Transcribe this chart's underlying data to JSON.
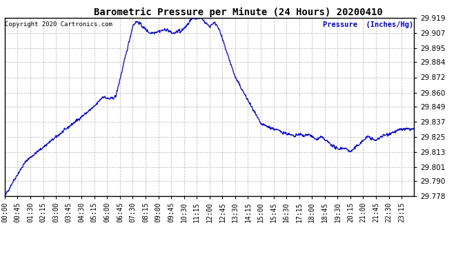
{
  "title": "Barometric Pressure per Minute (24 Hours) 20200410",
  "copyright_text": "Copyright 2020 Cartronics.com",
  "ylabel_text": "Pressure  (Inches/Hg)",
  "line_color": "#0000cc",
  "background_color": "#ffffff",
  "grid_color": "#b0b0b0",
  "title_color": "#000000",
  "copyright_color": "#000000",
  "ylabel_color": "#0000cc",
  "ytick_color": "#000000",
  "yticks": [
    29.778,
    29.79,
    29.801,
    29.813,
    29.825,
    29.837,
    29.849,
    29.86,
    29.872,
    29.884,
    29.895,
    29.907,
    29.919
  ],
  "xtick_labels": [
    "00:00",
    "00:45",
    "01:30",
    "02:15",
    "03:00",
    "03:45",
    "04:30",
    "05:15",
    "06:00",
    "06:45",
    "07:30",
    "08:15",
    "09:00",
    "09:45",
    "10:30",
    "11:15",
    "12:00",
    "12:45",
    "13:30",
    "14:15",
    "15:00",
    "15:45",
    "16:30",
    "17:15",
    "18:00",
    "18:45",
    "19:30",
    "20:15",
    "21:00",
    "21:45",
    "22:30",
    "23:15"
  ],
  "ymin": 29.778,
  "ymax": 29.919
}
